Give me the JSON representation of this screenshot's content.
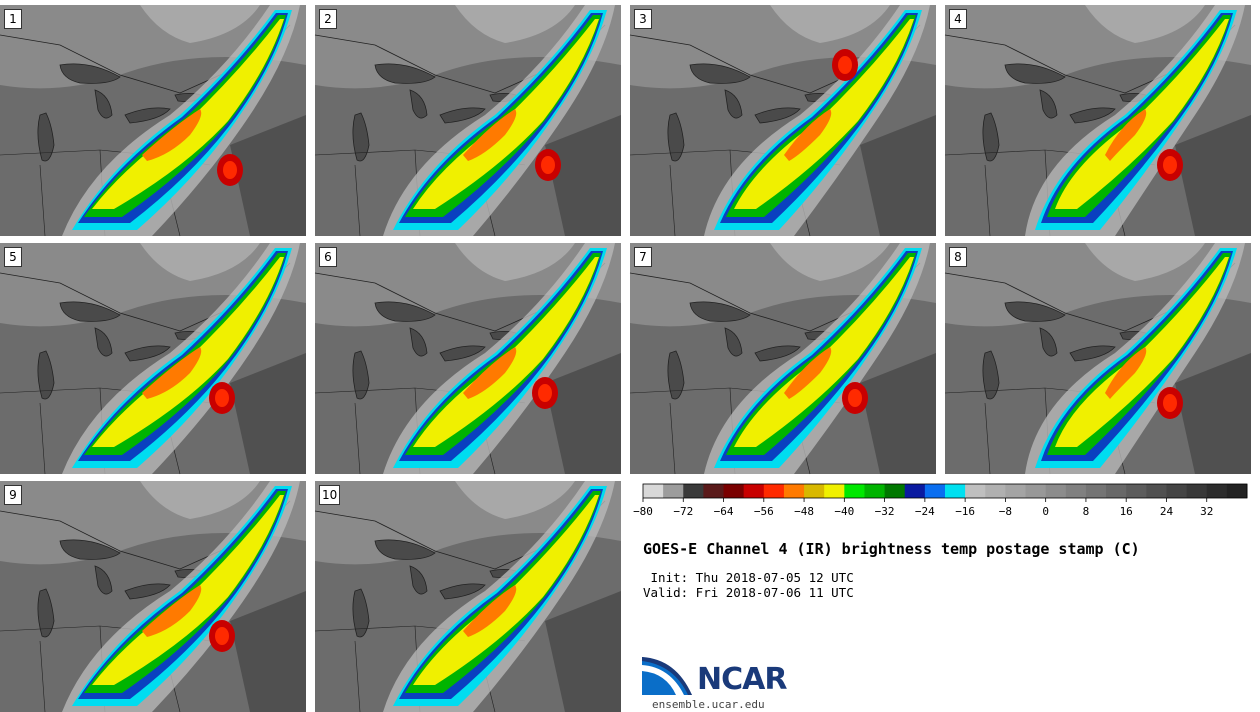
{
  "panels": [
    {
      "label": "1"
    },
    {
      "label": "2"
    },
    {
      "label": "3"
    },
    {
      "label": "4"
    },
    {
      "label": "5"
    },
    {
      "label": "6"
    },
    {
      "label": "7"
    },
    {
      "label": "8"
    },
    {
      "label": "9"
    },
    {
      "label": "10"
    }
  ],
  "colorbar": {
    "min": -80,
    "max": 40,
    "tick_labels": [
      "−80",
      "−72",
      "−64",
      "−56",
      "−48",
      "−40",
      "−32",
      "−24",
      "−16",
      "−8",
      "0",
      "8",
      "16",
      "24",
      "32"
    ],
    "tick_values": [
      -80,
      -72,
      -64,
      -56,
      -48,
      -40,
      -32,
      -24,
      -16,
      -8,
      0,
      8,
      16,
      24,
      32
    ],
    "bin_colors": [
      "#d8d8d8",
      "#9c9c9c",
      "#3a3a3a",
      "#5a1a1a",
      "#7a0000",
      "#c80000",
      "#ff2a00",
      "#ff7a00",
      "#d8b800",
      "#f0f000",
      "#00e800",
      "#00b400",
      "#007800",
      "#0a1aa0",
      "#0a6ef0",
      "#00e0f0",
      "#bfbfbf",
      "#b0b0b0",
      "#a4a4a4",
      "#989898",
      "#8c8c8c",
      "#808080",
      "#747474",
      "#686868",
      "#5c5c5c",
      "#505050",
      "#444444",
      "#383838",
      "#2c2c2c",
      "#222222"
    ]
  },
  "title": "GOES-E Channel 4 (IR) brightness temp postage stamp (C)",
  "init_line": " Init: Thu 2018-07-05 12 UTC",
  "valid_line": "Valid: Fri 2018-07-06 11 UTC",
  "logo": {
    "text": "NCAR",
    "url": "ensemble.ucar.edu",
    "color": "#0a6ec8"
  }
}
